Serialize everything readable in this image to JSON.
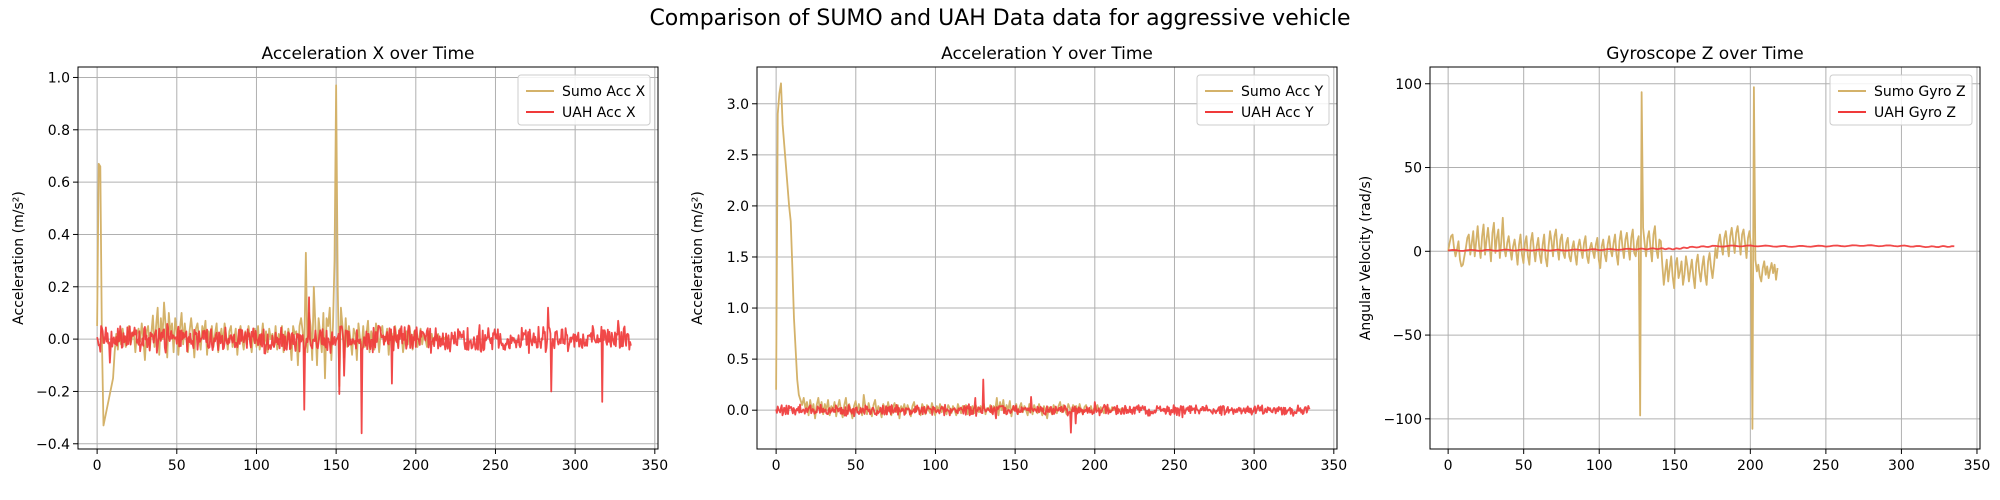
{
  "figure_title": "Comparison of SUMO and UAH Data data for aggressive vehicle",
  "colors": {
    "sumo": "#d4b26a",
    "uah": "#f03a3a",
    "grid": "#b0b0b0"
  },
  "chart_data": [
    {
      "type": "line",
      "title": "Acceleration X over Time",
      "xlabel": "",
      "ylabel": "Acceleration (m/s²)",
      "xlim": [
        -12,
        352
      ],
      "ylim": [
        -0.42,
        1.04
      ],
      "xticks": [
        0,
        50,
        100,
        150,
        200,
        250,
        300,
        350
      ],
      "yticks": [
        -0.4,
        -0.2,
        0.0,
        0.2,
        0.4,
        0.6,
        0.8,
        1.0
      ],
      "ytick_labels": [
        "−0.4",
        "−0.2",
        "0.0",
        "0.2",
        "0.4",
        "0.6",
        "0.8",
        "1.0"
      ],
      "legend": "top-right",
      "grid": true,
      "series": [
        {
          "name": "Sumo Acc X",
          "color": "#d4b26a",
          "x_range": [
            0,
            220
          ],
          "step": 1,
          "values": [
            0.05,
            0.67,
            0.66,
            0.0,
            -0.33,
            -0.3,
            -0.27,
            -0.24,
            -0.21,
            -0.18,
            -0.15,
            -0.05,
            0.02,
            -0.04,
            0.03,
            -0.02,
            0.04,
            0.0,
            -0.03,
            0.02,
            0.05,
            -0.02,
            0.01,
            0.03,
            -0.05,
            0.02,
            0.04,
            -0.01,
            0.06,
            0.0,
            -0.08,
            0.03,
            0.05,
            -0.04,
            0.02,
            0.09,
            -0.03,
            0.05,
            0.12,
            -0.06,
            0.08,
            0.0,
            0.14,
            0.05,
            -0.07,
            0.1,
            0.02,
            0.06,
            -0.05,
            0.08,
            0.03,
            -0.06,
            0.04,
            0.1,
            -0.02,
            0.06,
            0.0,
            -0.05,
            0.03,
            0.08,
            0.02,
            -0.07,
            0.04,
            0.06,
            0.0,
            -0.04,
            0.05,
            0.02,
            0.07,
            -0.06,
            0.03,
            0.0,
            0.05,
            -0.03,
            0.02,
            0.06,
            -0.05,
            0.0,
            0.04,
            -0.02,
            0.06,
            0.01,
            -0.04,
            0.03,
            0.05,
            -0.03,
            0.0,
            0.04,
            -0.06,
            0.02,
            0.05,
            0.0,
            -0.04,
            0.03,
            -0.02,
            0.05,
            0.0,
            -0.05,
            0.02,
            0.04,
            -0.03,
            0.05,
            -0.04,
            0.0,
            0.06,
            -0.02,
            0.03,
            -0.05,
            0.04,
            0.0,
            0.02,
            -0.03,
            0.05,
            -0.04,
            0.02,
            0.0,
            0.05,
            -0.05,
            0.03,
            -0.02,
            0.04,
            0.0,
            -0.08,
            0.05,
            0.02,
            0.03,
            -0.1,
            0.05,
            0.08,
            0.03,
            -0.06,
            0.33,
            -0.05,
            0.1,
            0.05,
            -0.08,
            0.2,
            0.05,
            -0.1,
            0.08,
            0.02,
            -0.05,
            0.1,
            -0.15,
            0.08,
            0.05,
            0.12,
            -0.08,
            0.05,
            0.3,
            0.97,
            0.2,
            -0.18,
            0.12,
            0.05,
            -0.07,
            0.08,
            -0.03,
            0.05,
            0.0,
            -0.06,
            0.04,
            0.02,
            -0.08,
            0.06,
            0.0,
            -0.04,
            0.05,
            -0.03,
            0.02,
            0.07,
            -0.05,
            0.03,
            0.0,
            -0.04,
            0.06,
            0.02,
            -0.05,
            0.03,
            0.05,
            -0.02,
            0.0,
            0.04,
            -0.06,
            0.03,
            0.02,
            -0.04,
            0.05,
            0.0,
            -0.03,
            0.04,
            0.02,
            -0.05,
            0.0,
            0.03,
            -0.02,
            0.05,
            0.0,
            -0.04,
            0.03,
            0.02,
            -0.03,
            0.0,
            0.04,
            -0.02,
            0.02,
            0.0,
            -0.03,
            0.03,
            0.0,
            0.02,
            -0.02,
            0.01,
            0.0,
            0.02,
            -0.01,
            0.0,
            0.01,
            0.0,
            0.01,
            0.0
          ]
        },
        {
          "name": "UAH Acc X",
          "color": "#f03a3a",
          "noisy": true,
          "x_range": [
            0,
            335
          ],
          "noise_amp": 0.04,
          "baseline": 0.0,
          "spikes": [
            [
              8,
              -0.09
            ],
            [
              130,
              -0.27
            ],
            [
              133,
              0.16
            ],
            [
              152,
              -0.21
            ],
            [
              155,
              -0.14
            ],
            [
              166,
              -0.36
            ],
            [
              185,
              -0.17
            ],
            [
              200,
              -0.03
            ],
            [
              283,
              0.12
            ],
            [
              285,
              -0.2
            ],
            [
              317,
              -0.24
            ],
            [
              327,
              0.07
            ]
          ]
        }
      ]
    },
    {
      "type": "line",
      "title": "Acceleration Y over Time",
      "xlabel": "",
      "ylabel": "Acceleration (m/s²)",
      "xlim": [
        -12,
        352
      ],
      "ylim": [
        -0.38,
        3.36
      ],
      "xticks": [
        0,
        50,
        100,
        150,
        200,
        250,
        300,
        350
      ],
      "yticks": [
        0.0,
        0.5,
        1.0,
        1.5,
        2.0,
        2.5,
        3.0
      ],
      "ytick_labels": [
        "0.0",
        "0.5",
        "1.0",
        "1.5",
        "2.0",
        "2.5",
        "3.0"
      ],
      "legend": "top-right",
      "grid": true,
      "series": [
        {
          "name": "Sumo Acc Y",
          "color": "#d4b26a",
          "x_range": [
            0,
            220
          ],
          "step": 1,
          "values": [
            0.2,
            2.9,
            3.1,
            3.2,
            2.8,
            2.6,
            2.4,
            2.2,
            2.0,
            1.85,
            1.4,
            0.9,
            0.6,
            0.3,
            0.15,
            0.1,
            0.05,
            0.12,
            0.02,
            0.08,
            -0.05,
            0.1,
            0.0,
            0.06,
            -0.08,
            0.05,
            0.12,
            0.0,
            0.08,
            -0.04,
            0.06,
            0.0,
            0.1,
            -0.05,
            0.04,
            0.0,
            0.08,
            -0.06,
            0.03,
            0.1,
            0.0,
            -0.07,
            0.05,
            0.12,
            -0.03,
            0.06,
            0.0,
            -0.08,
            0.04,
            0.09,
            -0.02,
            0.06,
            0.0,
            -0.05,
            0.15,
            0.03,
            -0.04,
            0.07,
            0.0,
            -0.06,
            0.05,
            0.1,
            -0.03,
            0.04,
            0.0,
            -0.07,
            0.06,
            0.02,
            -0.04,
            0.08,
            0.0,
            -0.05,
            0.03,
            0.07,
            -0.02,
            0.05,
            -0.08,
            0.04,
            0.0,
            0.06,
            -0.03,
            0.05,
            0.0,
            -0.06,
            0.04,
            0.08,
            -0.02,
            0.03,
            0.0,
            -0.05,
            0.06,
            0.02,
            -0.04,
            0.05,
            0.0,
            -0.03,
            0.07,
            0.01,
            -0.05,
            0.04,
            0.0,
            0.06,
            -0.02,
            0.03,
            0.0,
            -0.04,
            0.05,
            0.02,
            -0.03,
            0.04,
            0.0,
            -0.05,
            0.06,
            0.01,
            -0.03,
            0.04,
            0.0,
            0.05,
            -0.04,
            0.02,
            0.0,
            0.04,
            -0.03,
            0.05,
            0.0,
            -0.02,
            0.04,
            0.0,
            0.06,
            -0.04,
            0.02,
            0.0,
            0.05,
            -0.03,
            0.04,
            0.0,
            0.12,
            -0.05,
            0.08,
            0.0,
            0.1,
            -0.03,
            0.05,
            0.0,
            0.09,
            -0.06,
            0.04,
            0.0,
            0.06,
            -0.04,
            0.03,
            0.07,
            -0.02,
            0.04,
            0.0,
            -0.05,
            0.06,
            0.02,
            -0.04,
            0.05,
            0.0,
            -0.03,
            0.06,
            0.01,
            -0.05,
            0.04,
            0.0,
            -0.08,
            0.03,
            0.0,
            -0.04,
            0.05,
            0.0,
            -0.03,
            0.04,
            0.08,
            -0.02,
            0.05,
            0.0,
            -0.04,
            0.06,
            0.02,
            -0.03,
            0.05,
            0.0,
            0.04,
            -0.02,
            0.06,
            0.0,
            -0.04,
            0.03,
            0.05,
            -0.02,
            0.0,
            0.04,
            -0.03,
            0.02,
            0.0,
            0.05,
            -0.02,
            0.03,
            0.0,
            -0.03,
            0.04,
            0.0,
            0.02,
            -0.02,
            0.03,
            0.0,
            0.02,
            -0.01,
            0.01,
            0.0,
            0.02,
            0.0,
            0.01,
            0.0
          ]
        },
        {
          "name": "UAH Acc Y",
          "color": "#f03a3a",
          "noisy": true,
          "x_range": [
            0,
            335
          ],
          "noise_amp": 0.04,
          "baseline": 0.0,
          "spikes": [
            [
              4,
              -0.05
            ],
            [
              125,
              0.12
            ],
            [
              130,
              0.3
            ],
            [
              138,
              -0.08
            ],
            [
              160,
              0.13
            ],
            [
              185,
              -0.22
            ],
            [
              188,
              -0.13
            ],
            [
              200,
              0.08
            ],
            [
              255,
              -0.07
            ]
          ]
        }
      ]
    },
    {
      "type": "line",
      "title": "Gyroscope Z over Time",
      "xlabel": "",
      "ylabel": "Angular Velocity (rad/s)",
      "xlim": [
        -12,
        352
      ],
      "ylim": [
        -118,
        110
      ],
      "xticks": [
        0,
        50,
        100,
        150,
        200,
        250,
        300,
        350
      ],
      "yticks": [
        -100,
        -50,
        0,
        50,
        100
      ],
      "ytick_labels": [
        "−100",
        "−50",
        "0",
        "50",
        "100"
      ],
      "legend": "top-right",
      "grid": true,
      "series": [
        {
          "name": "Sumo Gyro Z",
          "color": "#d4b26a",
          "x_range": [
            0,
            218
          ],
          "step": 1,
          "values": [
            0,
            5,
            9,
            10,
            2,
            -3,
            1,
            6,
            -5,
            -9,
            -8,
            -3,
            2,
            8,
            10,
            -2,
            5,
            12,
            -3,
            6,
            15,
            3,
            -4,
            9,
            16,
            -2,
            7,
            14,
            4,
            -6,
            11,
            17,
            -1,
            8,
            13,
            -4,
            6,
            20,
            2,
            -3,
            5,
            9,
            1,
            -5,
            3,
            7,
            0,
            -8,
            4,
            10,
            -2,
            -7,
            5,
            9,
            -3,
            -8,
            6,
            11,
            1,
            -6,
            3,
            8,
            -2,
            -7,
            4,
            10,
            -4,
            -9,
            3,
            12,
            6,
            -3,
            9,
            13,
            2,
            -5,
            7,
            10,
            -1,
            -4,
            5,
            8,
            -3,
            -6,
            2,
            6,
            -2,
            -8,
            3,
            7,
            1,
            -4,
            5,
            9,
            -3,
            -7,
            2,
            5,
            0,
            -4,
            4,
            8,
            -5,
            -10,
            3,
            7,
            -2,
            -6,
            4,
            9,
            1,
            -3,
            5,
            10,
            -2,
            -8,
            6,
            12,
            3,
            -4,
            7,
            11,
            2,
            -5,
            8,
            13,
            -1,
            -3,
            6,
            9,
            -98,
            95,
            14,
            5,
            -3,
            8,
            12,
            2,
            -6,
            10,
            15,
            1,
            -4,
            7,
            6,
            -8,
            -20,
            -12,
            -5,
            -18,
            -10,
            -3,
            -15,
            -22,
            -8,
            -4,
            -16,
            -12,
            -6,
            -20,
            -14,
            -3,
            -9,
            -18,
            -11,
            -5,
            -15,
            -22,
            -7,
            -2,
            -12,
            -18,
            -9,
            -3,
            -14,
            -20,
            -6,
            -1,
            -10,
            -16,
            -8,
            2,
            -4,
            5,
            10,
            3,
            -2,
            8,
            12,
            4,
            -3,
            9,
            14,
            6,
            -1,
            11,
            15,
            7,
            -2,
            10,
            13,
            5,
            -4,
            8,
            12,
            3,
            -106,
            98,
            -5,
            -12,
            -8,
            -15,
            -18,
            -10,
            -6,
            -14,
            -9,
            -16,
            -11,
            -7,
            -13,
            -8,
            -17,
            -10
          ]
        },
        {
          "name": "UAH Gyro Z",
          "color": "#f03a3a",
          "smooth": true,
          "x": [
            0,
            25,
            50,
            75,
            100,
            125,
            140,
            150,
            160,
            175,
            200,
            225,
            250,
            275,
            300,
            320,
            335
          ],
          "values": [
            0.5,
            0.6,
            0.8,
            0.7,
            1.0,
            1.3,
            1.6,
            1.4,
            2.4,
            3.0,
            3.3,
            2.9,
            3.1,
            3.4,
            3.2,
            2.7,
            3.0
          ]
        }
      ]
    }
  ]
}
